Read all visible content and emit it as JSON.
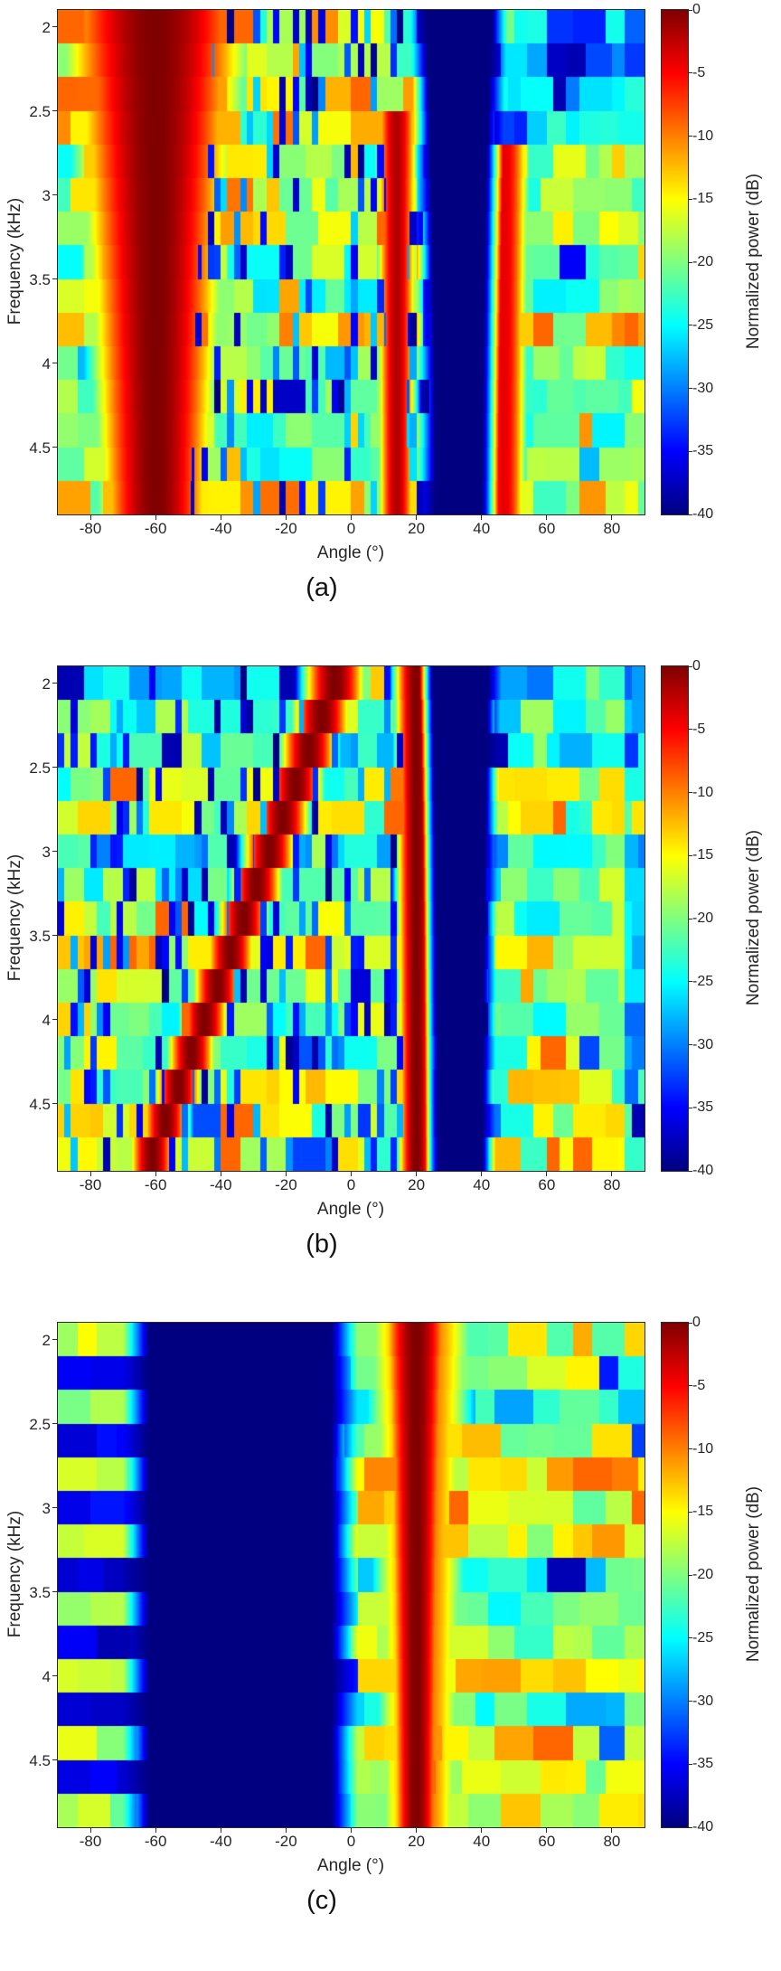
{
  "page": {
    "background": "#ffffff"
  },
  "chart_data": [
    {
      "type": "heatmap",
      "caption": "(a)",
      "xlabel": "Angle (°)",
      "ylabel": "Frequency (kHz)",
      "x_range": [
        -90,
        90
      ],
      "x_ticks": [
        -80,
        -60,
        -40,
        -20,
        0,
        20,
        40,
        60,
        80
      ],
      "y_range_khz": [
        1.9,
        4.9
      ],
      "y_ticks": [
        2,
        2.5,
        3,
        3.5,
        4,
        4.5
      ],
      "n_freq_bands": 15,
      "colormap": "jet",
      "colorbar": {
        "label": "Normalized power (dB)",
        "max": 0,
        "min": -40,
        "ticks": [
          0,
          -5,
          -10,
          -15,
          -20,
          -25,
          -30,
          -35,
          -40
        ]
      },
      "visual_summary": "Dominant 0 dB lobe near -60° at all frequencies (wider at low frequency), secondary peaks near +14° and +47° above ~2.7 kHz, deep -40 dB null band near +25°..+42°, noisy green/yellow background with thin dark comb lines between -65° and +24°.",
      "content": {
        "seed": 42,
        "bin_deg": 2,
        "band_offset_spread": 4,
        "background": {
          "mean": -19,
          "spread": 6,
          "hot_prob": 0.09,
          "cold_prob": 0.04,
          "run": [
            2,
            5
          ]
        },
        "comb": {
          "region": [
            -66,
            24
          ],
          "prob": 0.4,
          "base": -26,
          "spread": 14
        },
        "sources": [
          {
            "angle": -60,
            "peak": 0,
            "width_base": 6,
            "width_freq_scale": 34
          },
          {
            "angle": 14,
            "peak": -2,
            "f_min": 2.6,
            "width_base": 3.5,
            "width_freq_scale": 4
          },
          {
            "angle": 47,
            "peak": -4,
            "f_min": 2.8,
            "width_base": 4,
            "width_freq_scale": 6
          }
        ],
        "nulls": [
          {
            "center": 33,
            "halfwidth_base": 5,
            "halfwidth_freq_scale": 10,
            "edge": 5,
            "value": -40
          }
        ],
        "regions": [
          {
            "theta": [
              30,
              90
            ],
            "f": [
              1.9,
              2.6
            ],
            "delta": -11
          },
          {
            "theta": [
              -90,
              -72
            ],
            "f": [
              1.9,
              2.5
            ],
            "delta": 8
          }
        ]
      }
    },
    {
      "type": "heatmap",
      "caption": "(b)",
      "xlabel": "Angle (°)",
      "ylabel": "Frequency (kHz)",
      "x_range": [
        -90,
        90
      ],
      "x_ticks": [
        -80,
        -60,
        -40,
        -20,
        0,
        20,
        40,
        60,
        80
      ],
      "y_range_khz": [
        1.9,
        4.9
      ],
      "y_ticks": [
        2,
        2.5,
        3,
        3.5,
        4,
        4.5
      ],
      "n_freq_bands": 15,
      "colormap": "jet",
      "colorbar": {
        "label": "Normalized power (dB)",
        "max": 0,
        "min": -40,
        "ticks": [
          0,
          -5,
          -10,
          -15,
          -20,
          -25,
          -30,
          -35,
          -40
        ]
      },
      "visual_summary": "Diagonal 0 dB ridge moving from about -5° at 2 kHz to about -63° at 4.9 kHz, fixed narrow 0 dB lobe at +20°, deep -40 dB null band near +27°..+40°, dense dark comb lines from -90° to +15° over noisy green background.",
      "content": {
        "seed": 7,
        "bin_deg": 2,
        "band_offset_spread": 4,
        "background": {
          "mean": -21,
          "spread": 6,
          "hot_prob": 0.06,
          "cold_prob": 0.05,
          "run": [
            2,
            5
          ]
        },
        "comb": {
          "region": [
            -90,
            15
          ],
          "prob": 0.45,
          "base": -27,
          "spread": 13
        },
        "sources": [
          {
            "angle": -5,
            "slope": -20,
            "f_ref": 2.0,
            "peak": 0,
            "width_base": 4,
            "width_freq_scale": 6
          },
          {
            "angle": 20,
            "peak": 0,
            "width_base": 3.5,
            "width_freq_scale": 3
          }
        ],
        "nulls": [
          {
            "center": 33.5,
            "halfwidth_base": 5.5,
            "halfwidth_freq_scale": 6,
            "edge": 4,
            "value": -40
          }
        ],
        "regions": [
          {
            "theta": [
              84,
              90
            ],
            "f": [
              1.9,
              4.9
            ],
            "delta": -8
          }
        ]
      }
    },
    {
      "type": "heatmap",
      "caption": "(c)",
      "xlabel": "Angle (°)",
      "ylabel": "Frequency (kHz)",
      "x_range": [
        -90,
        90
      ],
      "x_ticks": [
        -80,
        -60,
        -40,
        -20,
        0,
        20,
        40,
        60,
        80
      ],
      "y_range_khz": [
        1.9,
        4.9
      ],
      "y_ticks": [
        2,
        2.5,
        3,
        3.5,
        4,
        4.5
      ],
      "n_freq_bands": 15,
      "colormap": "jet",
      "colorbar": {
        "label": "Normalized power (dB)",
        "max": 0,
        "min": -40,
        "ticks": [
          0,
          -5,
          -10,
          -15,
          -20,
          -25,
          -30,
          -35,
          -40
        ]
      },
      "visual_summary": "Single 0 dB lobe at +20° with orange halo, very deep -40 dB region from about -65° to -5° at all frequencies, alternating yellow/blue horizontal stripes at the far left edge, smooth yellow-green banded background on the right half with no comb lines.",
      "content": {
        "seed": 13,
        "bin_deg": 2,
        "band_offset_spread": 7,
        "background": {
          "mean": -19,
          "spread": 5,
          "hot_prob": 0.06,
          "cold_prob": 0.03,
          "run": [
            3,
            6
          ]
        },
        "left_stripes": {
          "theta_max": -62,
          "even_value": -18,
          "odd_value": -36
        },
        "sources": [
          {
            "angle": 20,
            "peak": 0,
            "width_base": 4,
            "width_freq_scale": 8
          },
          {
            "angle": 21,
            "peak": -8,
            "width_base": 8,
            "width_freq_scale": 12
          }
        ],
        "nulls": [
          {
            "center": -34,
            "halfwidth_base": 28,
            "halfwidth_freq_scale": 0,
            "edge": 8,
            "value": -40
          }
        ],
        "regions": []
      }
    }
  ]
}
